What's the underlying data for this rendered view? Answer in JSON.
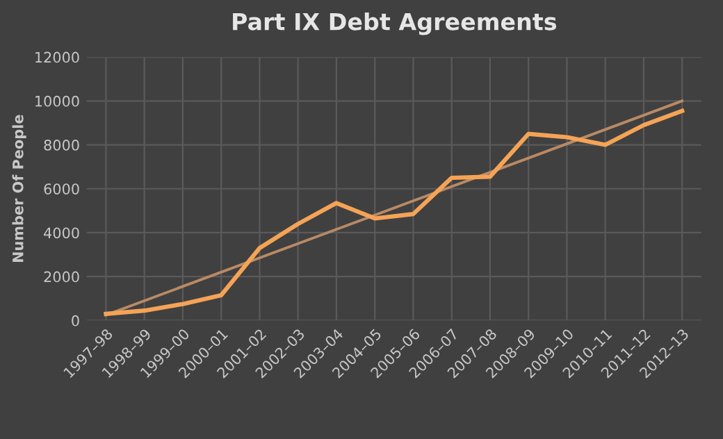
{
  "chart_data": {
    "type": "line",
    "title": "Part IX Debt Agreements",
    "ylabel": "Number Of People",
    "categories": [
      "1997–98",
      "1998–99",
      "1999–00",
      "2000–01",
      "2001–02",
      "2002–03",
      "2003–04",
      "2004–05",
      "2005–06",
      "2006–07",
      "2007–08",
      "2008–09",
      "2009–10",
      "2010–11",
      "2011–12",
      "2012–13"
    ],
    "series": [
      {
        "color": "#f5a356",
        "values": [
          300,
          450,
          750,
          1150,
          3300,
          4400,
          5350,
          4650,
          4850,
          6500,
          6550,
          8500,
          8350,
          8000,
          8900,
          9550
        ]
      },
      {
        "color": "#b98a66",
        "x": [
          "1997–98",
          "2012–13"
        ],
        "values": [
          250,
          10000
        ]
      }
    ],
    "ylim": [
      0,
      12000
    ],
    "yticks": [
      0,
      2000,
      4000,
      6000,
      8000,
      10000,
      12000
    ],
    "grid": true,
    "marker": "none",
    "line_style": "solid"
  }
}
